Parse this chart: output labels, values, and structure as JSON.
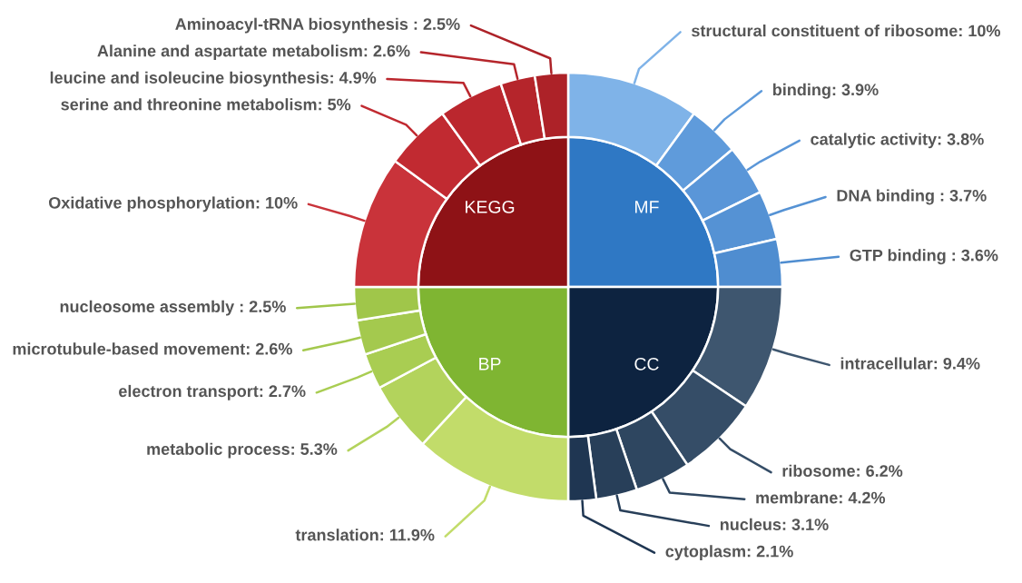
{
  "chart_data": {
    "type": "donut",
    "categories": [
      "MF",
      "CC",
      "BP",
      "KEGG",
      "structural constituent of ribosome",
      "binding",
      "catalytic activity",
      "DNA binding",
      "GTP binding",
      "intracellular",
      "ribosome",
      "membrane",
      "nucleus",
      "cytoplasm",
      "translation",
      "metabolic process",
      "electron transport",
      "microtubule-based movement",
      "nucleosome assembly",
      "Oxidative phosphorylation",
      "serine and threonine metabolism",
      "leucine and isoleucine biosynthesis",
      "Alanine and aspartate metabolism",
      "Aminoacyl-tRNA biosynthesis"
    ],
    "series": [
      {
        "type": "pie",
        "values": [
          25,
          25,
          25,
          25,
          null,
          null,
          null,
          null,
          null,
          null,
          null,
          null,
          null,
          null,
          null,
          null,
          null,
          null,
          null,
          null,
          null,
          null,
          null,
          null
        ],
        "colors": [
          "#2f78c4",
          "#0d2340",
          "#7fb532",
          "#8e1216",
          null,
          null,
          null,
          null,
          null,
          null,
          null,
          null,
          null,
          null,
          null,
          null,
          null,
          null,
          null,
          null,
          null,
          null,
          null,
          null
        ]
      },
      {
        "values": [
          null,
          null,
          null,
          null,
          10,
          3.9,
          3.8,
          3.7,
          3.6,
          9.4,
          6.2,
          4.2,
          3.1,
          2.1,
          11.9,
          5.3,
          2.7,
          2.6,
          2.5,
          10,
          5,
          4.9,
          2.6,
          2.5
        ],
        "value_labels": [
          null,
          null,
          null,
          null,
          ": 10%",
          ": 3.9%",
          ": 3.8%",
          " : 3.7%",
          " : 3.6%",
          ": 9.4%",
          ": 6.2%",
          ": 4.2%",
          ": 3.1%",
          ": 2.1%",
          ": 11.9%",
          ": 5.3%",
          ": 2.7%",
          ": 2.6%",
          " : 2.5%",
          ": 10%",
          ": 5%",
          ": 4.9%",
          ": 2.6%",
          " : 2.5%"
        ],
        "colors": [
          null,
          null,
          null,
          null,
          "#7fb3e8",
          "#5f9bdb",
          "#5a96d8",
          "#5592d4",
          "#4f8dd0",
          "#3e566f",
          "#354d67",
          "#2e4660",
          "#283f59",
          "#1f3652",
          "#c2dc6a",
          "#b3d35c",
          "#a9cd52",
          "#a4c94e",
          "#a0c64a",
          "#c9333a",
          "#c12a31",
          "#bb272e",
          "#b5252b",
          "#ad2228"
        ]
      }
    ]
  }
}
